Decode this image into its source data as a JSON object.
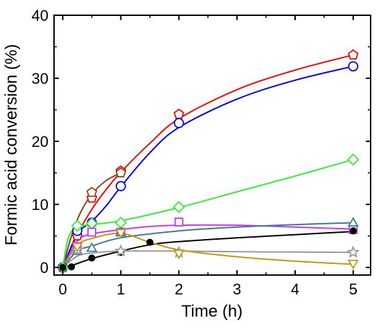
{
  "chart_data": {
    "type": "line",
    "xlabel": "Time (h)",
    "ylabel": "Formic acid conversion (%)",
    "xlim": [
      -0.15,
      5.3
    ],
    "ylim": [
      -1.2,
      40
    ],
    "xticks": [
      "0",
      "1",
      "2",
      "3",
      "4",
      "5"
    ],
    "yticks": [
      "0",
      "10",
      "20",
      "30",
      "40"
    ],
    "grid": false,
    "legend": "none",
    "series": [
      {
        "color": "#ff0000",
        "marker": "pentagon",
        "x": [
          0,
          0.25,
          0.5,
          1,
          2,
          5
        ],
        "y": [
          0,
          5,
          11,
          15.3,
          24.3,
          33.7
        ],
        "curve": [
          [
            0,
            0
          ],
          [
            0.25,
            5.2
          ],
          [
            0.5,
            9.2
          ],
          [
            0.75,
            12.4
          ],
          [
            1,
            15.1
          ],
          [
            1.5,
            19.7
          ],
          [
            2,
            23.6
          ],
          [
            3,
            28.2
          ],
          [
            4,
            31.3
          ],
          [
            5,
            33.7
          ]
        ]
      },
      {
        "color": "#0000ff",
        "marker": "circle",
        "x": [
          0,
          0.25,
          0.5,
          1,
          2,
          5
        ],
        "y": [
          0,
          5.8,
          7.1,
          12.9,
          22.9,
          31.9
        ],
        "curve": [
          [
            0,
            0
          ],
          [
            0.25,
            5.3
          ],
          [
            0.5,
            7.3
          ],
          [
            0.75,
            9.8
          ],
          [
            1,
            12.8
          ],
          [
            1.5,
            18.2
          ],
          [
            2,
            22.2
          ],
          [
            3,
            26.7
          ],
          [
            4,
            29.7
          ],
          [
            5,
            31.9
          ]
        ]
      },
      {
        "color": "#8b4513",
        "marker": "pentagon",
        "x": [
          0.5,
          1
        ],
        "y": [
          11.9,
          15
        ],
        "curve": [
          [
            0,
            0
          ],
          [
            0.15,
            5
          ],
          [
            0.3,
            8.6
          ],
          [
            0.5,
            11.6
          ],
          [
            0.75,
            13.8
          ],
          [
            1,
            15
          ]
        ]
      },
      {
        "color": "#33ee33",
        "marker": "diamond",
        "x": [
          0,
          0.25,
          0.5,
          1,
          2,
          5
        ],
        "y": [
          0,
          6.6,
          7,
          7.1,
          9.6,
          17.1
        ],
        "curve": [
          [
            0,
            0
          ],
          [
            0.1,
            4.8
          ],
          [
            0.25,
            6.4
          ],
          [
            0.5,
            6.8
          ],
          [
            1,
            7.4
          ],
          [
            2,
            9.5
          ],
          [
            3,
            12
          ],
          [
            4,
            14.5
          ],
          [
            5,
            17.1
          ]
        ]
      },
      {
        "color": "#cc33ff",
        "marker": "square",
        "x": [
          0.25,
          0.5,
          1,
          2,
          5
        ],
        "y": [
          3.3,
          5.6,
          5.6,
          7.2,
          6
        ],
        "curve": [
          [
            0,
            0
          ],
          [
            0.25,
            4.2
          ],
          [
            0.5,
            5.3
          ],
          [
            1,
            6
          ],
          [
            1.5,
            6.5
          ],
          [
            2,
            6.7
          ],
          [
            3,
            6.7
          ],
          [
            4,
            6.4
          ],
          [
            5,
            6.1
          ]
        ]
      },
      {
        "color": "#3a7a96",
        "marker": "triangle-up",
        "x": [
          0.25,
          0.5,
          1,
          5
        ],
        "y": [
          2.6,
          3.1,
          5.6,
          7.1
        ],
        "curve": [
          [
            0,
            0
          ],
          [
            0.25,
            2.6
          ],
          [
            0.5,
            3.4
          ],
          [
            1,
            4.7
          ],
          [
            2,
            5.8
          ],
          [
            3,
            6.4
          ],
          [
            4,
            6.8
          ],
          [
            5,
            7.1
          ]
        ]
      },
      {
        "color": "#000000",
        "marker": "filled-circle",
        "x": [
          0,
          0.15,
          0.5,
          1,
          1.5,
          5
        ],
        "y": [
          0,
          0.1,
          1.5,
          2.4,
          4,
          5.8
        ],
        "curve": [
          [
            0,
            0
          ],
          [
            0.15,
            0.3
          ],
          [
            0.5,
            1.4
          ],
          [
            1,
            2.6
          ],
          [
            1.5,
            3.6
          ],
          [
            2,
            4.1
          ],
          [
            3,
            4.7
          ],
          [
            4,
            5.2
          ],
          [
            5,
            5.7
          ]
        ]
      },
      {
        "color": "#999999",
        "marker": "star",
        "x": [
          0.25,
          1,
          2,
          5
        ],
        "y": [
          2.8,
          2.6,
          2.4,
          2.4
        ],
        "curve": [
          [
            0,
            0
          ],
          [
            0.25,
            1.8
          ],
          [
            0.5,
            2.3
          ],
          [
            1,
            2.6
          ],
          [
            2,
            2.6
          ],
          [
            3,
            2.5
          ],
          [
            4,
            2.45
          ],
          [
            5,
            2.4
          ]
        ]
      },
      {
        "color": "#c8960a",
        "marker": "triangle-down",
        "x": [
          0.25,
          1,
          2,
          5
        ],
        "y": [
          3.3,
          5.5,
          2.2,
          0.6
        ],
        "curve": [
          [
            0,
            0
          ],
          [
            0.25,
            3.5
          ],
          [
            0.5,
            4.6
          ],
          [
            1,
            5.4
          ],
          [
            1.5,
            4
          ],
          [
            2,
            2.8
          ],
          [
            3,
            1.7
          ],
          [
            4,
            1
          ],
          [
            5,
            0.5
          ]
        ]
      }
    ]
  }
}
